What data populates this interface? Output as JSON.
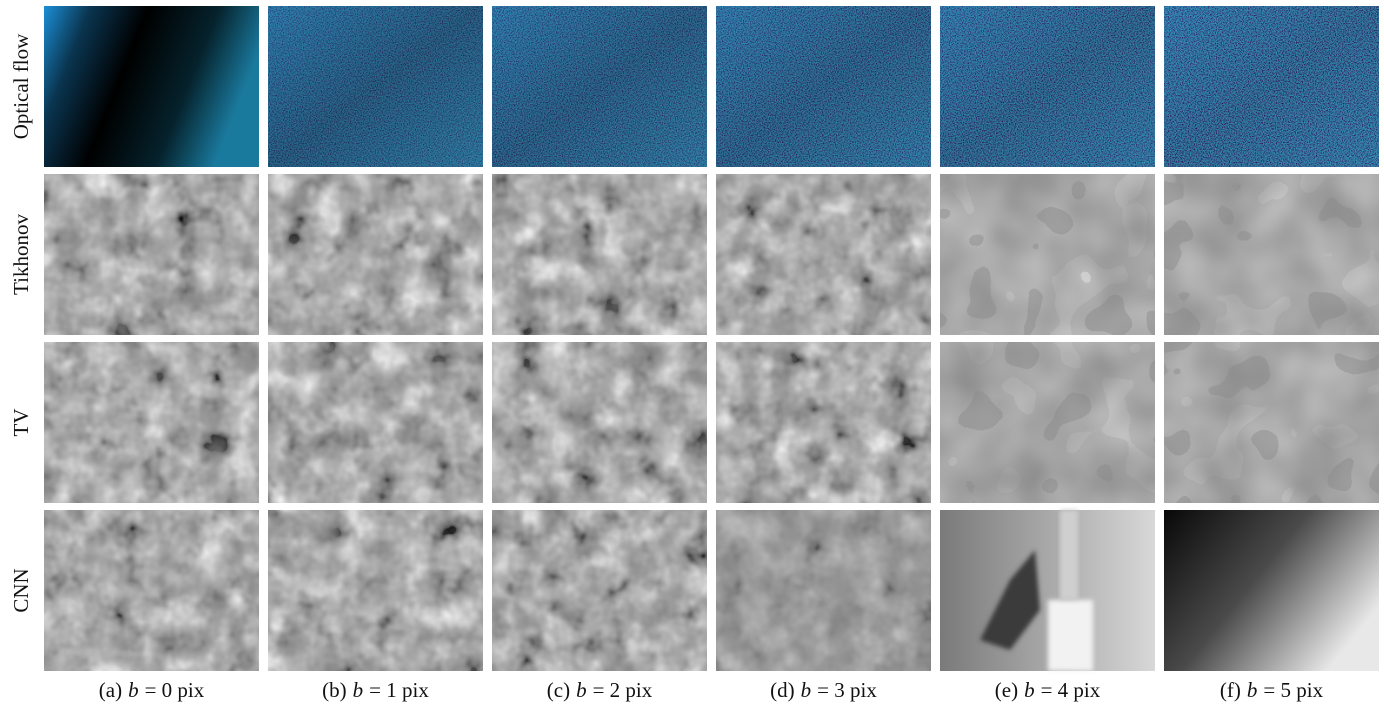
{
  "rows": [
    {
      "label": "Optical flow"
    },
    {
      "label": "Tikhonov"
    },
    {
      "label": "TV"
    },
    {
      "label": "CNN"
    }
  ],
  "columns": [
    {
      "tag": "(a)",
      "variable": "b",
      "rest": "= 0 pix"
    },
    {
      "tag": "(b)",
      "variable": "b",
      "rest": "= 1 pix"
    },
    {
      "tag": "(c)",
      "variable": "b",
      "rest": "= 2 pix"
    },
    {
      "tag": "(d)",
      "variable": "b",
      "rest": "= 3 pix"
    },
    {
      "tag": "(e)",
      "variable": "b",
      "rest": "= 4 pix"
    },
    {
      "tag": "(f)",
      "variable": "b",
      "rest": "= 5 pix"
    }
  ]
}
